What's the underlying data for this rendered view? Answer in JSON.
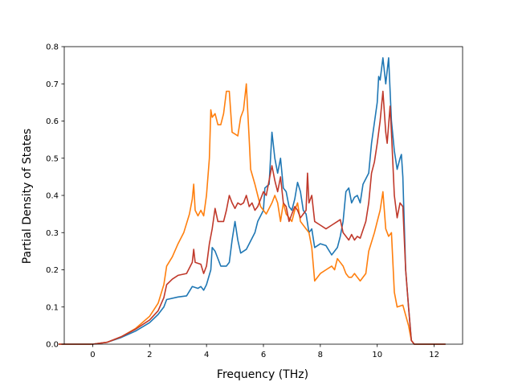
{
  "chart_data": {
    "type": "line",
    "title": "",
    "xlabel": "Frequency (THz)",
    "ylabel": "Partial Density of States",
    "xlim": [
      -1.0,
      13.0
    ],
    "ylim": [
      0.0,
      0.8
    ],
    "xticks": [
      0,
      2,
      4,
      6,
      8,
      10,
      12
    ],
    "yticks": [
      0.0,
      0.1,
      0.2,
      0.3,
      0.4,
      0.5,
      0.6,
      0.7,
      0.8
    ],
    "xtick_labels": [
      "0",
      "2",
      "4",
      "6",
      "8",
      "10",
      "12"
    ],
    "ytick_labels": [
      "0.0",
      "0.1",
      "0.2",
      "0.3",
      "0.4",
      "0.5",
      "0.6",
      "0.7",
      "0.8"
    ],
    "grid": false,
    "legend": "none",
    "series": [
      {
        "color": "#1f77b4",
        "points": [
          [
            -1.2,
            0
          ],
          [
            0,
            0
          ],
          [
            0.5,
            0.005
          ],
          [
            1.0,
            0.018
          ],
          [
            1.5,
            0.035
          ],
          [
            2.0,
            0.058
          ],
          [
            2.3,
            0.08
          ],
          [
            2.5,
            0.1
          ],
          [
            2.6,
            0.12
          ],
          [
            3.0,
            0.127
          ],
          [
            3.3,
            0.13
          ],
          [
            3.5,
            0.155
          ],
          [
            3.7,
            0.15
          ],
          [
            3.8,
            0.155
          ],
          [
            3.9,
            0.145
          ],
          [
            4.0,
            0.16
          ],
          [
            4.15,
            0.2
          ],
          [
            4.2,
            0.26
          ],
          [
            4.3,
            0.25
          ],
          [
            4.5,
            0.21
          ],
          [
            4.7,
            0.21
          ],
          [
            4.8,
            0.22
          ],
          [
            4.9,
            0.28
          ],
          [
            5.0,
            0.33
          ],
          [
            5.1,
            0.28
          ],
          [
            5.2,
            0.245
          ],
          [
            5.4,
            0.255
          ],
          [
            5.5,
            0.27
          ],
          [
            5.7,
            0.3
          ],
          [
            5.8,
            0.33
          ],
          [
            6.0,
            0.36
          ],
          [
            6.05,
            0.42
          ],
          [
            6.2,
            0.43
          ],
          [
            6.3,
            0.57
          ],
          [
            6.4,
            0.5
          ],
          [
            6.5,
            0.46
          ],
          [
            6.6,
            0.5
          ],
          [
            6.7,
            0.42
          ],
          [
            6.8,
            0.41
          ],
          [
            6.9,
            0.37
          ],
          [
            7.0,
            0.36
          ],
          [
            7.1,
            0.39
          ],
          [
            7.2,
            0.435
          ],
          [
            7.3,
            0.41
          ],
          [
            7.4,
            0.36
          ],
          [
            7.5,
            0.35
          ],
          [
            7.6,
            0.3
          ],
          [
            7.7,
            0.31
          ],
          [
            7.8,
            0.26
          ],
          [
            8.0,
            0.27
          ],
          [
            8.2,
            0.265
          ],
          [
            8.4,
            0.24
          ],
          [
            8.6,
            0.26
          ],
          [
            8.7,
            0.29
          ],
          [
            8.8,
            0.33
          ],
          [
            8.9,
            0.41
          ],
          [
            9.0,
            0.42
          ],
          [
            9.1,
            0.38
          ],
          [
            9.2,
            0.395
          ],
          [
            9.3,
            0.4
          ],
          [
            9.4,
            0.38
          ],
          [
            9.5,
            0.43
          ],
          [
            9.7,
            0.46
          ],
          [
            9.8,
            0.54
          ],
          [
            10.0,
            0.65
          ],
          [
            10.05,
            0.72
          ],
          [
            10.1,
            0.71
          ],
          [
            10.2,
            0.77
          ],
          [
            10.3,
            0.7
          ],
          [
            10.4,
            0.77
          ],
          [
            10.5,
            0.6
          ],
          [
            10.6,
            0.52
          ],
          [
            10.7,
            0.47
          ],
          [
            10.8,
            0.5
          ],
          [
            10.85,
            0.51
          ],
          [
            10.9,
            0.45
          ],
          [
            11.0,
            0.2
          ],
          [
            11.1,
            0.1
          ],
          [
            11.2,
            0.01
          ],
          [
            11.3,
            0
          ],
          [
            12.4,
            0
          ]
        ]
      },
      {
        "color": "#ff7f0e",
        "points": [
          [
            -1.2,
            0
          ],
          [
            0,
            0
          ],
          [
            0.5,
            0.005
          ],
          [
            1.0,
            0.02
          ],
          [
            1.5,
            0.042
          ],
          [
            2.0,
            0.075
          ],
          [
            2.3,
            0.11
          ],
          [
            2.5,
            0.16
          ],
          [
            2.6,
            0.21
          ],
          [
            2.8,
            0.235
          ],
          [
            3.0,
            0.27
          ],
          [
            3.2,
            0.3
          ],
          [
            3.4,
            0.35
          ],
          [
            3.5,
            0.39
          ],
          [
            3.55,
            0.43
          ],
          [
            3.6,
            0.36
          ],
          [
            3.7,
            0.345
          ],
          [
            3.8,
            0.36
          ],
          [
            3.9,
            0.345
          ],
          [
            4.0,
            0.4
          ],
          [
            4.1,
            0.5
          ],
          [
            4.15,
            0.63
          ],
          [
            4.2,
            0.61
          ],
          [
            4.3,
            0.62
          ],
          [
            4.4,
            0.59
          ],
          [
            4.5,
            0.59
          ],
          [
            4.6,
            0.62
          ],
          [
            4.7,
            0.68
          ],
          [
            4.8,
            0.68
          ],
          [
            4.9,
            0.57
          ],
          [
            5.0,
            0.565
          ],
          [
            5.1,
            0.56
          ],
          [
            5.2,
            0.61
          ],
          [
            5.3,
            0.63
          ],
          [
            5.4,
            0.7
          ],
          [
            5.5,
            0.55
          ],
          [
            5.55,
            0.47
          ],
          [
            5.7,
            0.43
          ],
          [
            5.8,
            0.4
          ],
          [
            5.9,
            0.37
          ],
          [
            6.0,
            0.36
          ],
          [
            6.1,
            0.35
          ],
          [
            6.3,
            0.38
          ],
          [
            6.4,
            0.4
          ],
          [
            6.5,
            0.38
          ],
          [
            6.6,
            0.33
          ],
          [
            6.7,
            0.38
          ],
          [
            6.8,
            0.35
          ],
          [
            7.0,
            0.33
          ],
          [
            7.1,
            0.36
          ],
          [
            7.2,
            0.38
          ],
          [
            7.3,
            0.33
          ],
          [
            7.5,
            0.31
          ],
          [
            7.6,
            0.3
          ],
          [
            7.7,
            0.26
          ],
          [
            7.8,
            0.17
          ],
          [
            8.0,
            0.19
          ],
          [
            8.2,
            0.2
          ],
          [
            8.4,
            0.21
          ],
          [
            8.5,
            0.2
          ],
          [
            8.6,
            0.23
          ],
          [
            8.7,
            0.22
          ],
          [
            8.8,
            0.21
          ],
          [
            8.9,
            0.19
          ],
          [
            9.0,
            0.18
          ],
          [
            9.1,
            0.18
          ],
          [
            9.2,
            0.19
          ],
          [
            9.3,
            0.18
          ],
          [
            9.4,
            0.17
          ],
          [
            9.6,
            0.19
          ],
          [
            9.7,
            0.25
          ],
          [
            9.9,
            0.3
          ],
          [
            10.0,
            0.33
          ],
          [
            10.1,
            0.36
          ],
          [
            10.2,
            0.41
          ],
          [
            10.3,
            0.31
          ],
          [
            10.4,
            0.29
          ],
          [
            10.5,
            0.3
          ],
          [
            10.6,
            0.14
          ],
          [
            10.7,
            0.1
          ],
          [
            10.9,
            0.105
          ],
          [
            11.1,
            0.05
          ],
          [
            11.2,
            0.01
          ],
          [
            11.3,
            0
          ],
          [
            12.4,
            0
          ]
        ]
      },
      {
        "color": "#c0392b",
        "points": [
          [
            -1.2,
            0
          ],
          [
            0,
            0
          ],
          [
            0.5,
            0.005
          ],
          [
            1.0,
            0.02
          ],
          [
            1.5,
            0.04
          ],
          [
            2.0,
            0.065
          ],
          [
            2.3,
            0.09
          ],
          [
            2.5,
            0.125
          ],
          [
            2.6,
            0.16
          ],
          [
            2.8,
            0.175
          ],
          [
            3.0,
            0.185
          ],
          [
            3.3,
            0.19
          ],
          [
            3.5,
            0.22
          ],
          [
            3.55,
            0.255
          ],
          [
            3.6,
            0.22
          ],
          [
            3.8,
            0.215
          ],
          [
            3.9,
            0.19
          ],
          [
            4.0,
            0.21
          ],
          [
            4.1,
            0.27
          ],
          [
            4.2,
            0.31
          ],
          [
            4.3,
            0.365
          ],
          [
            4.4,
            0.33
          ],
          [
            4.5,
            0.33
          ],
          [
            4.6,
            0.33
          ],
          [
            4.7,
            0.36
          ],
          [
            4.8,
            0.4
          ],
          [
            4.9,
            0.38
          ],
          [
            5.0,
            0.365
          ],
          [
            5.1,
            0.38
          ],
          [
            5.2,
            0.375
          ],
          [
            5.3,
            0.38
          ],
          [
            5.4,
            0.4
          ],
          [
            5.5,
            0.37
          ],
          [
            5.6,
            0.38
          ],
          [
            5.7,
            0.36
          ],
          [
            5.8,
            0.37
          ],
          [
            5.9,
            0.39
          ],
          [
            6.0,
            0.41
          ],
          [
            6.1,
            0.4
          ],
          [
            6.3,
            0.48
          ],
          [
            6.4,
            0.44
          ],
          [
            6.5,
            0.41
          ],
          [
            6.6,
            0.45
          ],
          [
            6.7,
            0.38
          ],
          [
            6.8,
            0.37
          ],
          [
            6.9,
            0.33
          ],
          [
            7.0,
            0.35
          ],
          [
            7.1,
            0.37
          ],
          [
            7.2,
            0.36
          ],
          [
            7.3,
            0.34
          ],
          [
            7.4,
            0.35
          ],
          [
            7.5,
            0.36
          ],
          [
            7.55,
            0.46
          ],
          [
            7.6,
            0.38
          ],
          [
            7.7,
            0.4
          ],
          [
            7.8,
            0.33
          ],
          [
            8.0,
            0.32
          ],
          [
            8.2,
            0.31
          ],
          [
            8.4,
            0.32
          ],
          [
            8.6,
            0.33
          ],
          [
            8.7,
            0.335
          ],
          [
            8.8,
            0.3
          ],
          [
            9.0,
            0.28
          ],
          [
            9.1,
            0.295
          ],
          [
            9.2,
            0.28
          ],
          [
            9.3,
            0.29
          ],
          [
            9.4,
            0.285
          ],
          [
            9.6,
            0.33
          ],
          [
            9.7,
            0.38
          ],
          [
            9.8,
            0.46
          ],
          [
            9.9,
            0.49
          ],
          [
            10.0,
            0.54
          ],
          [
            10.1,
            0.6
          ],
          [
            10.2,
            0.68
          ],
          [
            10.3,
            0.57
          ],
          [
            10.35,
            0.54
          ],
          [
            10.4,
            0.59
          ],
          [
            10.45,
            0.64
          ],
          [
            10.5,
            0.57
          ],
          [
            10.6,
            0.4
          ],
          [
            10.7,
            0.34
          ],
          [
            10.8,
            0.38
          ],
          [
            10.9,
            0.37
          ],
          [
            11.0,
            0.2
          ],
          [
            11.1,
            0.1
          ],
          [
            11.2,
            0.01
          ],
          [
            11.3,
            0
          ],
          [
            12.4,
            0
          ]
        ]
      }
    ]
  }
}
